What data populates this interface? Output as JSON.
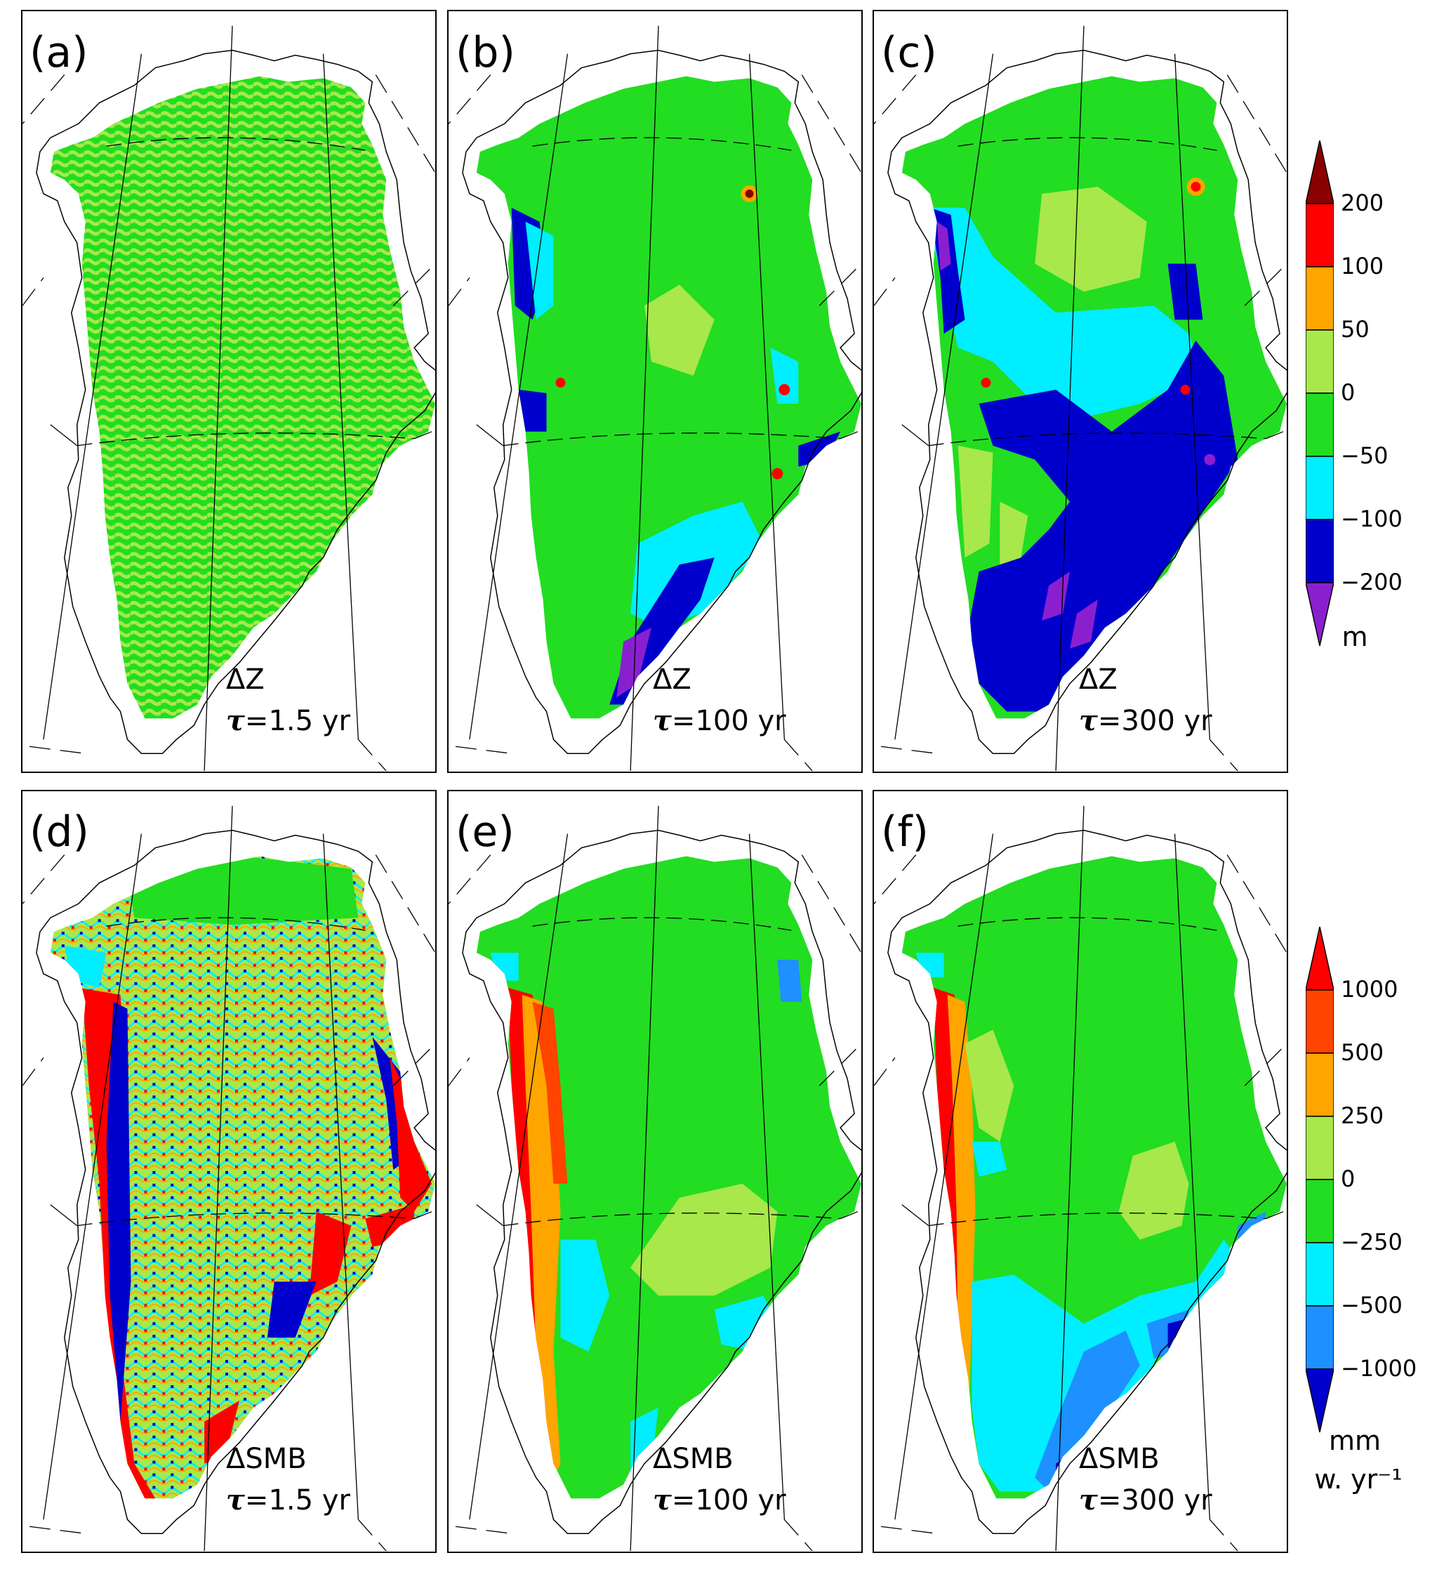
{
  "colors": {
    "purple": "#8a1fd0",
    "dark_red": "#8b0000",
    "red": "#ff0000",
    "red_orange": "#ff4400",
    "orange": "#ffa500",
    "light_green": "#a8e84a",
    "green": "#22dd22",
    "cyan": "#00eeff",
    "blue": "#0000cc",
    "mid_blue": "#1e90ff"
  },
  "panels": [
    {
      "label": "(a)",
      "variable": "ΔZ",
      "tau": "τ",
      "tau_value": "=1.5 yr",
      "style": "dz1"
    },
    {
      "label": "(b)",
      "variable": "ΔZ",
      "tau": "τ",
      "tau_value": "=100 yr",
      "style": "dz100"
    },
    {
      "label": "(c)",
      "variable": "ΔZ",
      "tau": "τ",
      "tau_value": "=300 yr",
      "style": "dz300"
    },
    {
      "label": "(d)",
      "variable": "ΔSMB",
      "tau": "τ",
      "tau_value": "=1.5 yr",
      "style": "smb1"
    },
    {
      "label": "(e)",
      "variable": "ΔSMB",
      "tau": "τ",
      "tau_value": "=100 yr",
      "style": "smb100"
    },
    {
      "label": "(f)",
      "variable": "ΔSMB",
      "tau": "τ",
      "tau_value": "=300 yr",
      "style": "smb300"
    }
  ],
  "colorbars": [
    {
      "unit": "m",
      "ticks": [
        "200",
        "100",
        "50",
        "0",
        "−50",
        "−100",
        "−200"
      ],
      "colors": [
        "#8b0000",
        "#ff0000",
        "#ffa500",
        "#a8e84a",
        "#22dd22",
        "#00eeff",
        "#0000cc",
        "#8a1fd0"
      ]
    },
    {
      "unit": "mm",
      "unit2": "w. yr⁻¹",
      "ticks": [
        "1000",
        "500",
        "250",
        "0",
        "−250",
        "−500",
        "−1000"
      ],
      "colors": [
        "#ff0000",
        "#ff4400",
        "#ffa500",
        "#a8e84a",
        "#22dd22",
        "#00eeff",
        "#1e90ff",
        "#0000cc"
      ]
    }
  ]
}
